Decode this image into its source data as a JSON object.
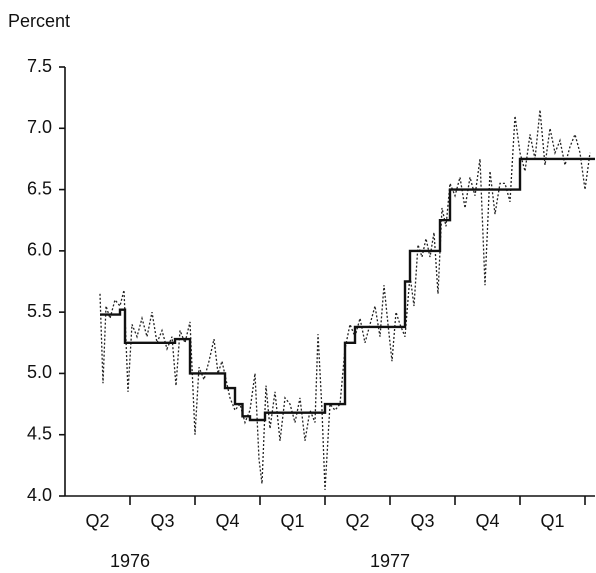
{
  "chart_data": {
    "type": "line",
    "y_label": "Percent",
    "ylim": [
      4.0,
      7.5
    ],
    "yticks": [
      {
        "value": 4.0,
        "label": "4.0"
      },
      {
        "value": 4.5,
        "label": "4.5"
      },
      {
        "value": 5.0,
        "label": "5.0"
      },
      {
        "value": 5.5,
        "label": "5.5"
      },
      {
        "value": 6.0,
        "label": "6.0"
      },
      {
        "value": 6.5,
        "label": "6.5"
      },
      {
        "value": 7.0,
        "label": "7.0"
      },
      {
        "value": 7.5,
        "label": "7.5"
      }
    ],
    "xlim": [
      0,
      106
    ],
    "xticks": [
      {
        "value": 6.5,
        "label": "Q2"
      },
      {
        "value": 19.5,
        "label": "Q3"
      },
      {
        "value": 32.5,
        "label": "Q4"
      },
      {
        "value": 45.5,
        "label": "Q1"
      },
      {
        "value": 58.5,
        "label": "Q2"
      },
      {
        "value": 71.5,
        "label": "Q3"
      },
      {
        "value": 84.5,
        "label": "Q4"
      },
      {
        "value": 97.5,
        "label": "Q1"
      }
    ],
    "x_minor_ticks": [
      13,
      26,
      39,
      52,
      65,
      78,
      91,
      104
    ],
    "x_groups": [
      {
        "value": 13,
        "label": "1976"
      },
      {
        "value": 65,
        "label": "1977"
      }
    ],
    "series": [
      {
        "color": "#222",
        "style": "dotted",
        "x": [
          7,
          7.6,
          8.2,
          9,
          10,
          11,
          11.8,
          12.6,
          13.4,
          14.4,
          15.4,
          16.4,
          17.4,
          18.4,
          19.4,
          20.4,
          21.4,
          22.2,
          23,
          24,
          25,
          26,
          26.8,
          27.8,
          28.8,
          29.8,
          30.6,
          31.4,
          32.2,
          33,
          34,
          35,
          36,
          37,
          38,
          38.8,
          39.4,
          40.2,
          41,
          42,
          43,
          44,
          45,
          46,
          47,
          48,
          49,
          50,
          50.6,
          51.4,
          52,
          53,
          54,
          55,
          56,
          57,
          58,
          59,
          60,
          61,
          62,
          63,
          63.8,
          64.6,
          65.4,
          66.2,
          67,
          68,
          69,
          69.8,
          70.6,
          71.4,
          72.2,
          73,
          73.8,
          74.6,
          75.4,
          76.2,
          77,
          78,
          79,
          80,
          81,
          82,
          83,
          84,
          85,
          86,
          87,
          88,
          89,
          90,
          91,
          92,
          93,
          94,
          95,
          96,
          97,
          98,
          99,
          100,
          101,
          102,
          103,
          104,
          105
        ],
        "values": [
          5.65,
          4.92,
          5.55,
          5.45,
          5.6,
          5.55,
          5.68,
          4.85,
          5.4,
          5.3,
          5.45,
          5.3,
          5.5,
          5.25,
          5.35,
          5.2,
          5.3,
          4.9,
          5.35,
          5.25,
          5.42,
          4.5,
          5.05,
          4.95,
          5.1,
          5.28,
          5.0,
          5.1,
          4.95,
          4.8,
          4.7,
          4.75,
          4.6,
          4.7,
          5.0,
          4.3,
          4.1,
          4.9,
          4.55,
          4.85,
          4.45,
          4.8,
          4.75,
          4.6,
          4.8,
          4.45,
          4.7,
          4.6,
          5.32,
          4.7,
          4.05,
          4.75,
          4.7,
          4.75,
          5.2,
          5.4,
          5.3,
          5.45,
          5.25,
          5.4,
          5.55,
          5.3,
          5.72,
          5.4,
          5.1,
          5.5,
          5.4,
          5.3,
          5.8,
          5.55,
          6.05,
          5.95,
          6.1,
          5.95,
          6.15,
          5.65,
          6.35,
          6.2,
          6.55,
          6.45,
          6.6,
          6.35,
          6.6,
          6.45,
          6.75,
          5.72,
          6.65,
          6.3,
          6.55,
          6.55,
          6.4,
          7.1,
          6.8,
          6.65,
          6.95,
          6.75,
          7.15,
          6.7,
          7.0,
          6.8,
          6.9,
          6.7,
          6.85,
          6.95,
          6.8,
          6.5,
          6.8
        ]
      },
      {
        "color": "#111",
        "style": "solid",
        "x": [
          7,
          11,
          11,
          12,
          12,
          22,
          22,
          25,
          25,
          32,
          32,
          34,
          34,
          35.5,
          35.5,
          37,
          37,
          40,
          40,
          52,
          52,
          56,
          56,
          58,
          58,
          68,
          68,
          69,
          69,
          75,
          75,
          77,
          77,
          91,
          91,
          106
        ],
        "values": [
          5.48,
          5.48,
          5.52,
          5.52,
          5.25,
          5.25,
          5.28,
          5.28,
          5.0,
          5.0,
          4.88,
          4.88,
          4.75,
          4.75,
          4.65,
          4.65,
          4.62,
          4.62,
          4.68,
          4.68,
          4.75,
          4.75,
          5.25,
          5.25,
          5.38,
          5.38,
          5.75,
          5.75,
          6.0,
          6.0,
          6.25,
          6.25,
          6.5,
          6.5,
          6.75,
          6.75
        ]
      }
    ]
  }
}
